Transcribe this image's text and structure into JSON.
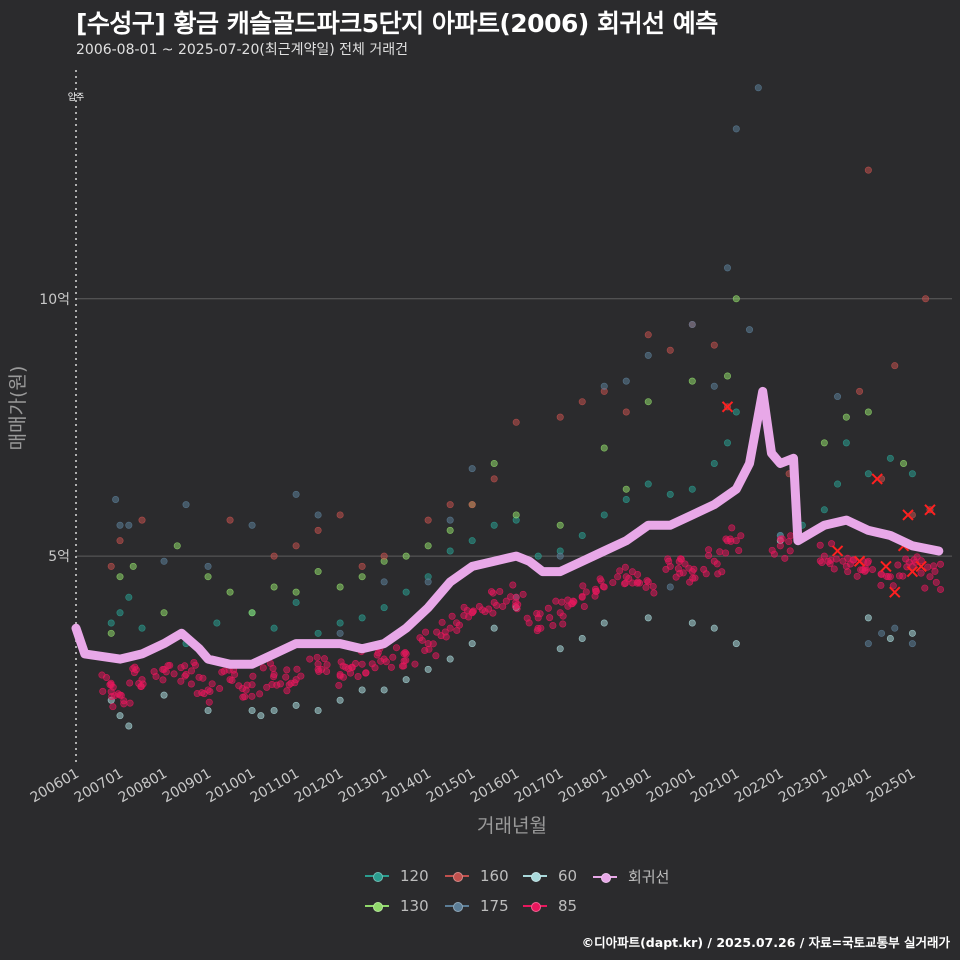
{
  "title": "[수성구] 황금 캐슬골드파크5단지 아파트(2006) 회귀선 예측",
  "subtitle": "2006-08-01 ~ 2025-07-20(최근계약일) 전체 거래건",
  "credit": "©디아파트(dapt.kr) / 2025.07.26 / 자료=국토교통부 실거래가",
  "colors": {
    "background": "#2b2b2d",
    "gridline": "#5e5e5e",
    "s120": "#2a9d8f",
    "s130": "#90d96a",
    "s160": "#c0504d",
    "s175": "#5b7d96",
    "s60": "#a9d9db",
    "s85": "#e8175d",
    "regression": "#e8a8e8"
  },
  "legend": {
    "items": [
      {
        "label": "120",
        "color": "#2a9d8f"
      },
      {
        "label": "130",
        "color": "#90d96a"
      },
      {
        "label": "160",
        "color": "#c0504d"
      },
      {
        "label": "175",
        "color": "#5b7d96"
      },
      {
        "label": "60",
        "color": "#a9d9db"
      },
      {
        "label": "85",
        "color": "#e8175d"
      },
      {
        "label": "회귀선",
        "color": "#e8a8e8"
      }
    ]
  },
  "chart_data": {
    "type": "scatter",
    "title": "[수성구] 황금 캐슬골드파크5단지 아파트(2006) 회귀선 예측",
    "subtitle": "2006-08-01 ~ 2025-07-20(최근계약일) 전체 거래건",
    "xlabel": "거래년월",
    "ylabel": "매매가(원)",
    "x_tick_labels": [
      "200601",
      "200701",
      "200801",
      "200901",
      "201001",
      "201101",
      "201201",
      "201301",
      "201401",
      "201501",
      "201601",
      "201701",
      "201801",
      "201901",
      "202001",
      "202101",
      "202201",
      "202301",
      "202401",
      "202501"
    ],
    "y_tick_labels": [
      {
        "value": 5,
        "label": "5억"
      },
      {
        "value": 10,
        "label": "10억"
      }
    ],
    "y_unit": "억원",
    "xlim": [
      2006.0,
      2025.9
    ],
    "ylim": [
      1.0,
      14.6
    ],
    "annotation": {
      "x": 2006.0,
      "label": "입주"
    },
    "legend_position": "bottom",
    "grid": "horizontal",
    "series": [
      {
        "name": "120",
        "points": [
          [
            2006.8,
            3.7
          ],
          [
            2007.0,
            3.9
          ],
          [
            2007.2,
            4.2
          ],
          [
            2007.5,
            3.6
          ],
          [
            2008.5,
            3.3
          ],
          [
            2009.2,
            3.7
          ],
          [
            2010.0,
            3.9
          ],
          [
            2010.5,
            3.6
          ],
          [
            2011.0,
            4.1
          ],
          [
            2011.5,
            3.5
          ],
          [
            2012.0,
            3.7
          ],
          [
            2012.5,
            3.8
          ],
          [
            2013.0,
            4.0
          ],
          [
            2013.5,
            4.3
          ],
          [
            2014.0,
            4.6
          ],
          [
            2014.5,
            5.1
          ],
          [
            2015.0,
            5.3
          ],
          [
            2015.5,
            5.6
          ],
          [
            2016.0,
            5.7
          ],
          [
            2016.5,
            5.0
          ],
          [
            2017.0,
            5.1
          ],
          [
            2017.5,
            5.4
          ],
          [
            2018.0,
            5.8
          ],
          [
            2018.5,
            6.1
          ],
          [
            2019.0,
            6.4
          ],
          [
            2019.5,
            6.2
          ],
          [
            2020.0,
            6.3
          ],
          [
            2020.5,
            6.8
          ],
          [
            2020.8,
            7.2
          ],
          [
            2021.0,
            7.8
          ],
          [
            2022.0,
            5.4
          ],
          [
            2022.5,
            5.6
          ],
          [
            2023.0,
            5.9
          ],
          [
            2023.3,
            6.4
          ],
          [
            2023.5,
            7.2
          ],
          [
            2024.0,
            6.6
          ],
          [
            2024.5,
            6.9
          ],
          [
            2025.0,
            6.6
          ]
        ]
      },
      {
        "name": "130",
        "points": [
          [
            2006.8,
            3.5
          ],
          [
            2007.0,
            4.6
          ],
          [
            2007.3,
            4.8
          ],
          [
            2008.0,
            3.9
          ],
          [
            2008.3,
            5.2
          ],
          [
            2009.0,
            4.6
          ],
          [
            2009.5,
            4.3
          ],
          [
            2010.0,
            3.9
          ],
          [
            2010.5,
            4.4
          ],
          [
            2011.0,
            4.3
          ],
          [
            2011.5,
            4.7
          ],
          [
            2012.0,
            4.4
          ],
          [
            2012.5,
            4.6
          ],
          [
            2013.0,
            4.9
          ],
          [
            2013.5,
            5.0
          ],
          [
            2014.0,
            5.2
          ],
          [
            2014.5,
            5.5
          ],
          [
            2015.0,
            6.0
          ],
          [
            2015.5,
            6.8
          ],
          [
            2016.0,
            5.8
          ],
          [
            2017.0,
            5.6
          ],
          [
            2018.0,
            7.1
          ],
          [
            2018.5,
            6.3
          ],
          [
            2019.0,
            8.0
          ],
          [
            2020.0,
            8.4
          ],
          [
            2020.8,
            8.5
          ],
          [
            2021.0,
            10.0
          ],
          [
            2023.0,
            7.2
          ],
          [
            2023.5,
            7.7
          ],
          [
            2024.0,
            7.8
          ],
          [
            2024.8,
            6.8
          ]
        ]
      },
      {
        "name": "160",
        "points": [
          [
            2006.8,
            4.8
          ],
          [
            2007.0,
            5.3
          ],
          [
            2007.5,
            5.7
          ],
          [
            2009.5,
            5.7
          ],
          [
            2010.5,
            5.0
          ],
          [
            2011.0,
            5.2
          ],
          [
            2011.5,
            5.5
          ],
          [
            2012.0,
            5.8
          ],
          [
            2012.5,
            4.8
          ],
          [
            2013.0,
            5.0
          ],
          [
            2014.0,
            5.7
          ],
          [
            2014.5,
            6.0
          ],
          [
            2015.0,
            6.0
          ],
          [
            2015.5,
            6.5
          ],
          [
            2016.0,
            7.6
          ],
          [
            2017.0,
            7.7
          ],
          [
            2017.5,
            8.0
          ],
          [
            2018.0,
            8.2
          ],
          [
            2018.5,
            7.8
          ],
          [
            2019.0,
            9.3
          ],
          [
            2019.5,
            9.0
          ],
          [
            2020.0,
            9.5
          ],
          [
            2020.5,
            9.1
          ],
          [
            2020.8,
            7.9
          ],
          [
            2022.2,
            6.6
          ],
          [
            2023.8,
            8.2
          ],
          [
            2024.0,
            12.5
          ],
          [
            2024.3,
            6.5
          ],
          [
            2024.6,
            8.7
          ],
          [
            2025.0,
            5.8
          ],
          [
            2025.3,
            10.0
          ],
          [
            2025.4,
            5.9
          ]
        ]
      },
      {
        "name": "175",
        "points": [
          [
            2006.9,
            6.1
          ],
          [
            2007.0,
            5.6
          ],
          [
            2007.2,
            5.6
          ],
          [
            2008.0,
            4.9
          ],
          [
            2008.5,
            6.0
          ],
          [
            2009.0,
            4.8
          ],
          [
            2010.0,
            5.6
          ],
          [
            2011.0,
            6.2
          ],
          [
            2011.5,
            5.8
          ],
          [
            2012.0,
            3.5
          ],
          [
            2013.0,
            4.5
          ],
          [
            2014.0,
            4.5
          ],
          [
            2014.5,
            5.7
          ],
          [
            2015.0,
            6.7
          ],
          [
            2016.0,
            4.2
          ],
          [
            2017.0,
            5.0
          ],
          [
            2018.0,
            8.3
          ],
          [
            2018.5,
            8.4
          ],
          [
            2019.0,
            8.9
          ],
          [
            2019.5,
            4.4
          ],
          [
            2020.0,
            9.5
          ],
          [
            2020.5,
            8.3
          ],
          [
            2020.8,
            10.6
          ],
          [
            2021.0,
            13.3
          ],
          [
            2021.3,
            9.4
          ],
          [
            2021.5,
            14.1
          ],
          [
            2022.0,
            5.4
          ],
          [
            2023.3,
            8.1
          ],
          [
            2024.0,
            3.3
          ],
          [
            2024.3,
            3.5
          ],
          [
            2024.6,
            3.6
          ],
          [
            2025.0,
            3.3
          ]
        ]
      },
      {
        "name": "60",
        "points": [
          [
            2006.8,
            2.2
          ],
          [
            2007.0,
            1.9
          ],
          [
            2007.2,
            1.7
          ],
          [
            2008.0,
            2.3
          ],
          [
            2009.0,
            2.0
          ],
          [
            2010.0,
            2.0
          ],
          [
            2010.2,
            1.9
          ],
          [
            2010.5,
            2.0
          ],
          [
            2011.0,
            2.1
          ],
          [
            2011.5,
            2.0
          ],
          [
            2012.0,
            2.2
          ],
          [
            2012.5,
            2.4
          ],
          [
            2013.0,
            2.4
          ],
          [
            2013.5,
            2.6
          ],
          [
            2014.0,
            2.8
          ],
          [
            2014.5,
            3.0
          ],
          [
            2015.0,
            3.3
          ],
          [
            2015.5,
            3.6
          ],
          [
            2016.0,
            4.0
          ],
          [
            2017.0,
            3.2
          ],
          [
            2017.5,
            3.4
          ],
          [
            2018.0,
            3.7
          ],
          [
            2019.0,
            3.8
          ],
          [
            2020.0,
            3.7
          ],
          [
            2020.5,
            3.6
          ],
          [
            2021.0,
            3.3
          ],
          [
            2022.0,
            5.3
          ],
          [
            2024.0,
            3.8
          ],
          [
            2024.5,
            3.4
          ],
          [
            2025.0,
            3.5
          ]
        ]
      },
      {
        "name": "85",
        "points": [
          [
            2006.8,
            2.5
          ],
          [
            2007.0,
            2.3
          ],
          [
            2007.5,
            2.6
          ],
          [
            2008.0,
            2.8
          ],
          [
            2008.5,
            2.7
          ],
          [
            2009.0,
            2.4
          ],
          [
            2009.5,
            2.6
          ],
          [
            2010.0,
            2.5
          ],
          [
            2010.5,
            2.7
          ],
          [
            2011.0,
            2.6
          ],
          [
            2011.5,
            2.8
          ],
          [
            2012.0,
            2.7
          ],
          [
            2012.5,
            2.9
          ],
          [
            2013.0,
            3.0
          ],
          [
            2013.5,
            3.1
          ],
          [
            2014.0,
            3.3
          ],
          [
            2014.5,
            3.6
          ],
          [
            2015.0,
            3.9
          ],
          [
            2015.5,
            4.1
          ],
          [
            2016.0,
            4.2
          ],
          [
            2016.5,
            3.8
          ],
          [
            2017.0,
            3.9
          ],
          [
            2017.5,
            4.2
          ],
          [
            2018.0,
            4.4
          ],
          [
            2018.5,
            4.6
          ],
          [
            2019.0,
            4.5
          ],
          [
            2019.5,
            4.8
          ],
          [
            2020.0,
            4.7
          ],
          [
            2020.5,
            4.9
          ],
          [
            2021.0,
            5.3
          ],
          [
            2022.0,
            5.2
          ],
          [
            2023.0,
            5.0
          ],
          [
            2023.5,
            4.8
          ],
          [
            2024.0,
            4.9
          ],
          [
            2024.5,
            4.6
          ],
          [
            2025.0,
            4.8
          ],
          [
            2025.4,
            4.6
          ]
        ]
      },
      {
        "name": "회귀선",
        "points": [
          [
            2006.0,
            3.6
          ],
          [
            2006.2,
            3.1
          ],
          [
            2007.0,
            3.0
          ],
          [
            2007.5,
            3.1
          ],
          [
            2008.0,
            3.3
          ],
          [
            2008.4,
            3.5
          ],
          [
            2008.8,
            3.2
          ],
          [
            2009.0,
            3.0
          ],
          [
            2009.5,
            2.9
          ],
          [
            2010.0,
            2.9
          ],
          [
            2010.5,
            3.1
          ],
          [
            2011.0,
            3.3
          ],
          [
            2011.5,
            3.3
          ],
          [
            2012.0,
            3.3
          ],
          [
            2012.5,
            3.2
          ],
          [
            2013.0,
            3.3
          ],
          [
            2013.5,
            3.6
          ],
          [
            2014.0,
            4.0
          ],
          [
            2014.5,
            4.5
          ],
          [
            2015.0,
            4.8
          ],
          [
            2015.5,
            4.9
          ],
          [
            2016.0,
            5.0
          ],
          [
            2016.3,
            4.9
          ],
          [
            2016.6,
            4.7
          ],
          [
            2017.0,
            4.7
          ],
          [
            2017.5,
            4.9
          ],
          [
            2018.0,
            5.1
          ],
          [
            2018.5,
            5.3
          ],
          [
            2019.0,
            5.6
          ],
          [
            2019.5,
            5.6
          ],
          [
            2020.0,
            5.8
          ],
          [
            2020.5,
            6.0
          ],
          [
            2021.0,
            6.3
          ],
          [
            2021.3,
            6.8
          ],
          [
            2021.6,
            8.2
          ],
          [
            2021.8,
            7.0
          ],
          [
            2022.0,
            6.8
          ],
          [
            2022.3,
            6.9
          ],
          [
            2022.4,
            5.3
          ],
          [
            2022.8,
            5.5
          ],
          [
            2023.0,
            5.6
          ],
          [
            2023.5,
            5.7
          ],
          [
            2024.0,
            5.5
          ],
          [
            2024.5,
            5.4
          ],
          [
            2025.0,
            5.2
          ],
          [
            2025.6,
            5.1
          ]
        ]
      }
    ]
  },
  "highlights_85": [
    [
      2020.8,
      7.9
    ],
    [
      2023.3,
      5.1
    ],
    [
      2023.8,
      4.9
    ],
    [
      2024.2,
      6.5
    ],
    [
      2024.4,
      4.8
    ],
    [
      2024.6,
      4.3
    ],
    [
      2024.8,
      5.2
    ],
    [
      2025.0,
      4.7
    ],
    [
      2025.2,
      4.8
    ],
    [
      2025.4,
      5.9
    ],
    [
      2024.9,
      5.8
    ]
  ]
}
